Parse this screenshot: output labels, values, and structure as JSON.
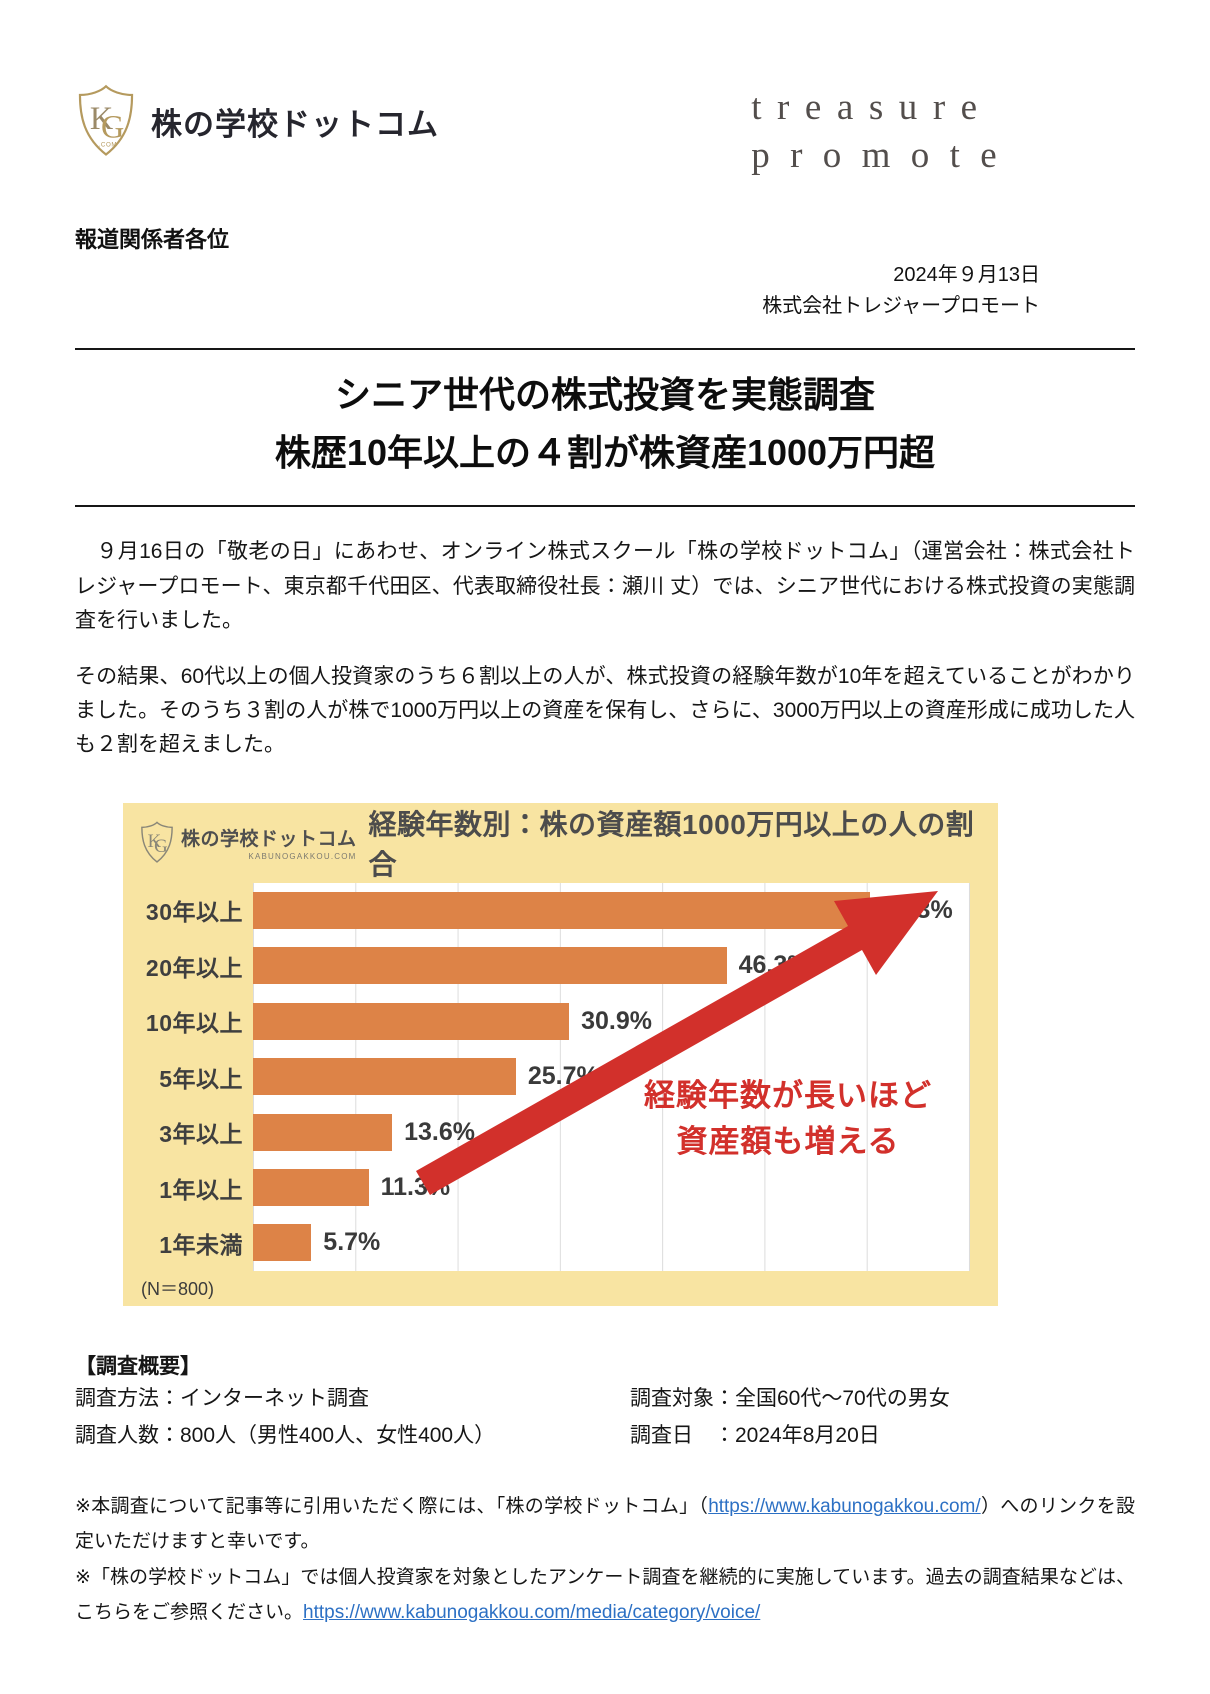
{
  "header": {
    "logo_text": "株の学校ドットコム",
    "logo_monogram_k": "K",
    "logo_monogram_g": "G",
    "logo_com": ".COM",
    "partner_logo_line1": "treasure",
    "partner_logo_line2": "promote"
  },
  "meta": {
    "addressee": "報道関係者各位",
    "date": "2024年９月13日",
    "company": "株式会社トレジャープロモート"
  },
  "title": {
    "line1": "シニア世代の株式投資を実態調査",
    "line2": "株歴10年以上の４割が株資産1000万円超"
  },
  "body": {
    "paragraph1": "　９月16日の「敬老の日」にあわせ、オンライン株式スクール「株の学校ドットコム」（運営会社：株式会社トレジャープロモート、東京都千代田区、代表取締役社長：瀬川 丈）では、シニア世代における株式投資の実態調査を行いました。",
    "paragraph2": "その結果、60代以上の個人投資家のうち６割以上の人が、株式投資の経験年数が10年を超えていることがわかりました。そのうち３割の人が株で1000万円以上の資産を保有し、さらに、3000万円以上の資産形成に成功した人も２割を超えました。"
  },
  "chart_data": {
    "type": "bar",
    "orientation": "horizontal",
    "title": "経験年数別：株の資産額1000万円以上の人の割合",
    "logo_text": "株の学校ドットコム",
    "logo_sub": "KABUNOGAKKOU.COM",
    "categories": [
      "30年以上",
      "20年以上",
      "10年以上",
      "5年以上",
      "3年以上",
      "1年以上",
      "1年未満"
    ],
    "values": [
      60.3,
      46.3,
      30.9,
      25.7,
      13.6,
      11.3,
      5.7
    ],
    "value_suffix": "%",
    "xlim": [
      0,
      70
    ],
    "gridline_interval": 10,
    "grid": true,
    "sample_note": "(N＝800)",
    "annotation_line1": "経験年数が長いほど",
    "annotation_line2": "資産額も増える",
    "colors": {
      "bar": "#dd8347",
      "background": "#f8e4a2",
      "plot_background": "#ffffff",
      "gridline": "#dcdcdc",
      "annotation": "#d2302b",
      "arrow": "#d2302b",
      "label": "#3f3f3f"
    }
  },
  "survey": {
    "heading": "【調査概要】",
    "rows": [
      {
        "left": "調査方法：インターネット調査",
        "right": "調査対象：全国60代～70代の男女"
      },
      {
        "left": "調査人数：800人（男性400人、女性400人）",
        "right": "調査日　：2024年8月20日"
      }
    ]
  },
  "notes": {
    "note1_pre": "※本調査について記事等に引用いただく際には、「株の学校ドットコム」（",
    "note1_link": "https://www.kabunogakkou.com/",
    "note1_post": "）へのリンクを設定いただけますと幸いです。",
    "note2_pre": "※「株の学校ドットコム」では個人投資家を対象としたアンケート調査を継続的に実施しています。過去の調査結果などは、こちらをご参照ください。",
    "note2_link": "https://www.kabunogakkou.com/media/category/voice/"
  }
}
